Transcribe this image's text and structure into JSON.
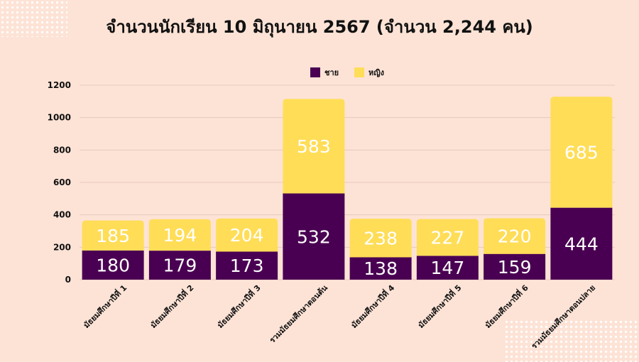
{
  "title": "จำนวนนักเรียน 10 มิถุนายน 2567 (จำนวน 2,244 คน)",
  "colors": {
    "male": "#4a0052",
    "female": "#ffdd57",
    "background": "#fde3d6"
  },
  "chart_data": {
    "type": "bar",
    "stacked": true,
    "categories": [
      "มัธยมศึกษาปีที่ 1",
      "มัธยมศึกษาปีที่ 2",
      "มัธยมศึกษาปีที่ 3",
      "รวมมัธยมศึกษาตอนต้น",
      "มัธยมศึกษาปีที่ 4",
      "มัธยมศึกษาปีที่ 5",
      "มัธยมศึกษาปีที่ 6",
      "รวมมัธยมศึกษาตอนปลาย"
    ],
    "series": [
      {
        "name": "ชาย",
        "values": [
          180,
          179,
          173,
          532,
          138,
          147,
          159,
          444
        ],
        "color": "#4a0052"
      },
      {
        "name": "หญิง",
        "values": [
          185,
          194,
          204,
          583,
          238,
          227,
          220,
          685
        ],
        "color": "#ffdd57"
      }
    ],
    "ylim": [
      0,
      1200
    ],
    "yticks": [
      0,
      200,
      400,
      600,
      800,
      1000,
      1200
    ],
    "grid": true,
    "legend": "top-center"
  }
}
